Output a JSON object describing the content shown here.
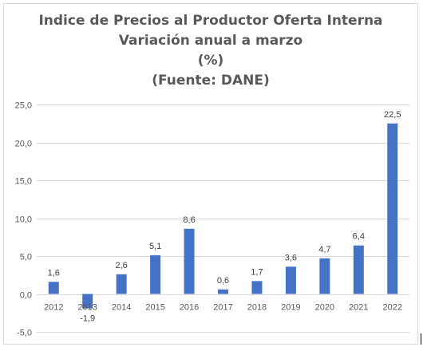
{
  "title_lines": [
    "Indice de Precios al Productor Oferta Interna",
    "Variación anual a marzo",
    "(%)",
    "(Fuente: DANE)"
  ],
  "colors": {
    "bar": "#4472c4",
    "grid": "#d9d9d9",
    "text": "#595959",
    "title": "#595959"
  },
  "chart_data": {
    "type": "bar",
    "title": "Indice de Precios al Productor Oferta Interna / Variación anual a marzo / (%) / (Fuente: DANE)",
    "categories": [
      "2012",
      "2013",
      "2014",
      "2015",
      "2016",
      "2017",
      "2018",
      "2019",
      "2020",
      "2021",
      "2022"
    ],
    "values": [
      1.6,
      -1.9,
      2.6,
      5.1,
      8.6,
      0.6,
      1.7,
      3.6,
      4.7,
      6.4,
      22.5
    ],
    "data_labels": [
      "1,6",
      "-1,9",
      "2,6",
      "5,1",
      "8,6",
      "0,6",
      "1,7",
      "3,6",
      "4,7",
      "6,4",
      "22,5"
    ],
    "y_ticks": [
      25,
      20,
      15,
      10,
      5,
      0,
      -5
    ],
    "y_tick_labels": [
      "25,0",
      "20,0",
      "15,0",
      "10,0",
      "5,0",
      "0,0",
      "-5,0"
    ],
    "ylim": [
      -5,
      25
    ],
    "grid": true,
    "legend": "none"
  }
}
